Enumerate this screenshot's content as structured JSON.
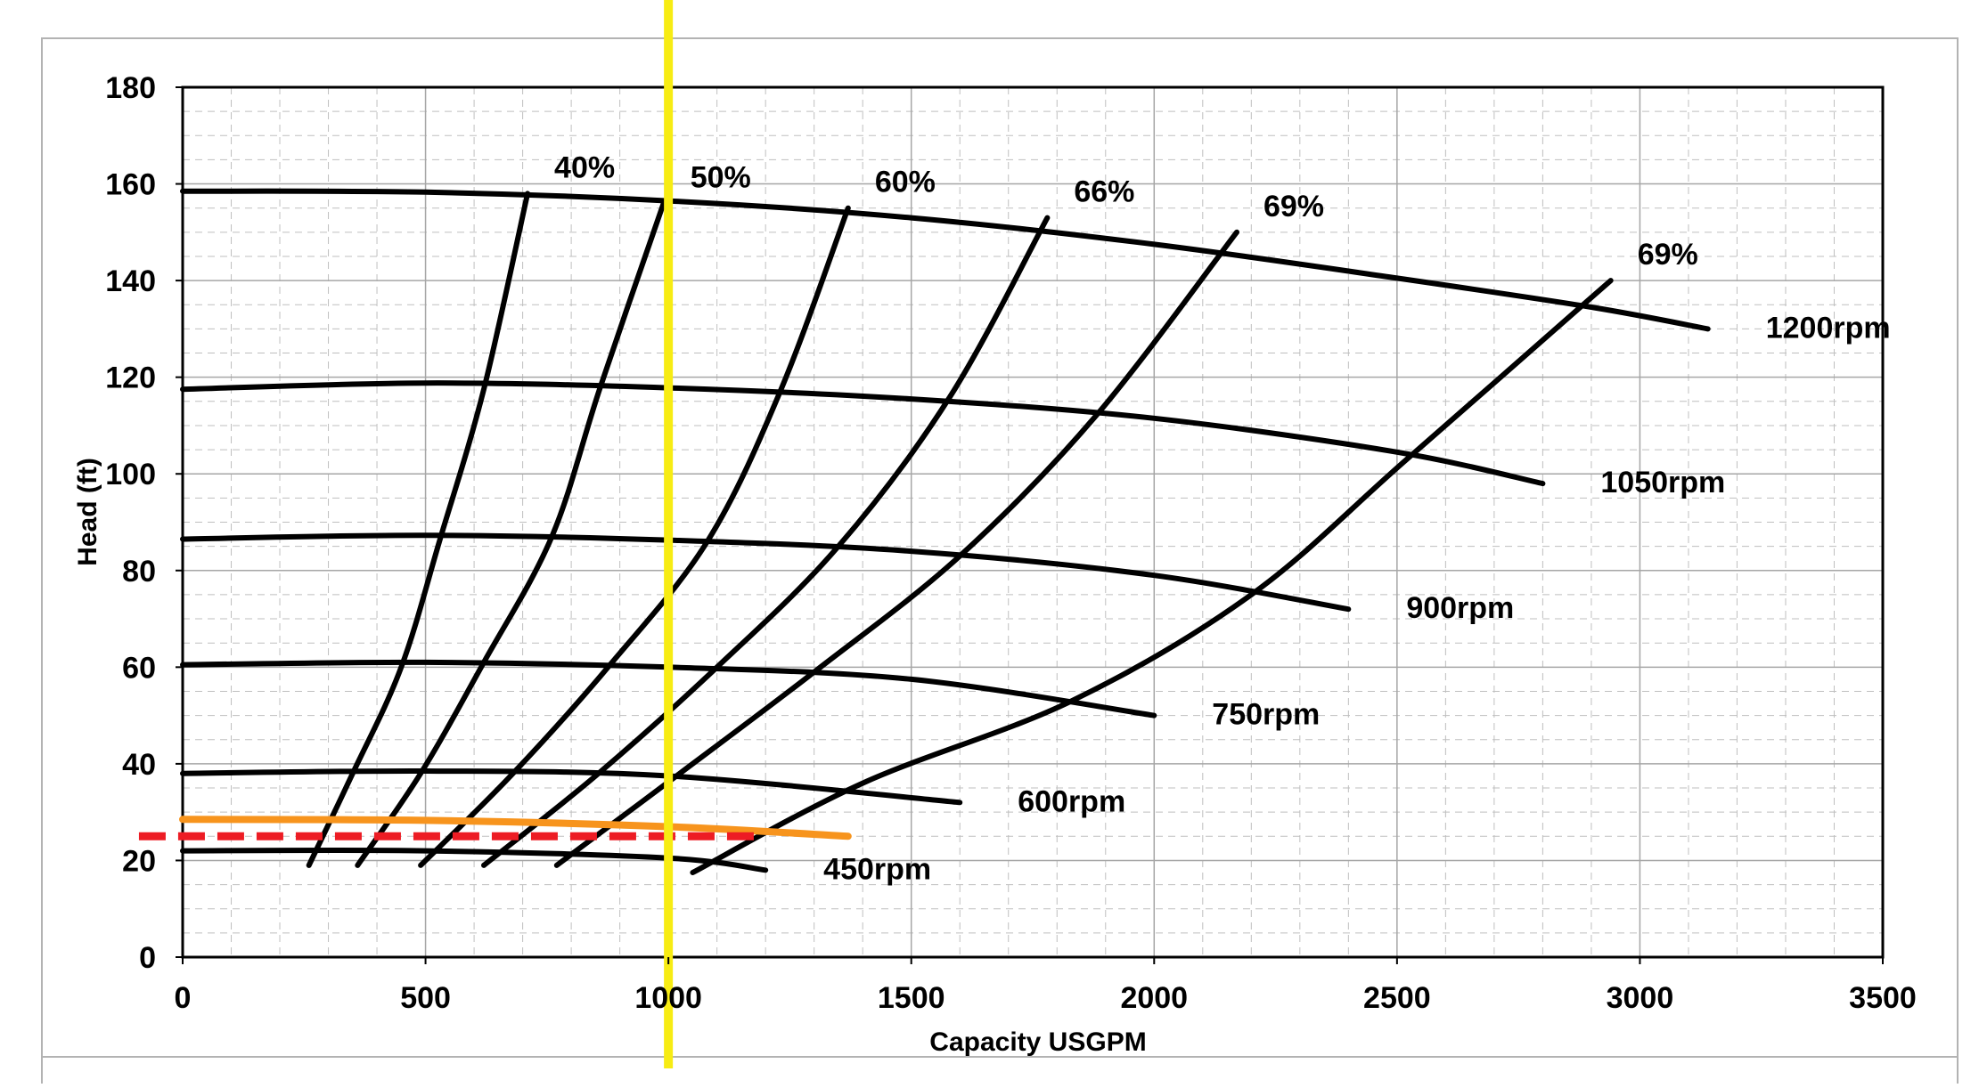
{
  "chart_data": {
    "type": "line",
    "title": "",
    "xlabel": "Capacity USGPM",
    "ylabel": "Head (ft)",
    "xlim": [
      0,
      3500
    ],
    "ylim": [
      0,
      180
    ],
    "x_ticks": [
      0,
      500,
      1000,
      1500,
      2000,
      2500,
      3000,
      3500
    ],
    "x_tick_labels": [
      "0",
      "500",
      "1000",
      "1500",
      "2000",
      "2500",
      "3000",
      "3500"
    ],
    "y_ticks": [
      0,
      20,
      40,
      60,
      80,
      100,
      120,
      140,
      160,
      180
    ],
    "y_tick_labels": [
      "0",
      "20",
      "40",
      "60",
      "80",
      "100",
      "120",
      "140",
      "160",
      "180"
    ],
    "grid": true,
    "minor_grid": "dashed",
    "legend": "none",
    "speed_curves": [
      {
        "name": "1200rpm",
        "color": "#000000",
        "points": [
          [
            0,
            158.5
          ],
          [
            500,
            158.3
          ],
          [
            1000,
            156.5
          ],
          [
            1500,
            153
          ],
          [
            2000,
            147.5
          ],
          [
            2500,
            140.5
          ],
          [
            2900,
            134.5
          ],
          [
            3140,
            130
          ]
        ]
      },
      {
        "name": "1050rpm",
        "color": "#000000",
        "points": [
          [
            0,
            117.5
          ],
          [
            500,
            118.8
          ],
          [
            1000,
            117.8
          ],
          [
            1500,
            115.5
          ],
          [
            2000,
            111.5
          ],
          [
            2500,
            104.5
          ],
          [
            2800,
            98
          ]
        ]
      },
      {
        "name": "900rpm",
        "color": "#000000",
        "points": [
          [
            0,
            86.5
          ],
          [
            500,
            87.3
          ],
          [
            1000,
            86.3
          ],
          [
            1500,
            84
          ],
          [
            2000,
            79
          ],
          [
            2400,
            72
          ]
        ]
      },
      {
        "name": "750rpm",
        "color": "#000000",
        "points": [
          [
            0,
            60.5
          ],
          [
            500,
            61
          ],
          [
            1000,
            60
          ],
          [
            1500,
            57.5
          ],
          [
            2000,
            50
          ]
        ]
      },
      {
        "name": "600rpm",
        "color": "#000000",
        "points": [
          [
            0,
            38
          ],
          [
            500,
            38.5
          ],
          [
            1000,
            37.5
          ],
          [
            1600,
            32
          ]
        ]
      },
      {
        "name": "450rpm",
        "color": "#000000",
        "points": [
          [
            0,
            22
          ],
          [
            500,
            22
          ],
          [
            1000,
            20.5
          ],
          [
            1200,
            18
          ]
        ]
      }
    ],
    "efficiency_curves": [
      {
        "name": "40%",
        "color": "#000000",
        "points": [
          [
            260,
            19
          ],
          [
            350,
            38
          ],
          [
            450,
            60
          ],
          [
            530,
            86.5
          ],
          [
            620,
            117.5
          ],
          [
            710,
            158
          ]
        ]
      },
      {
        "name": "50%",
        "color": "#000000",
        "points": [
          [
            360,
            19
          ],
          [
            490,
            38
          ],
          [
            620,
            61
          ],
          [
            760,
            87
          ],
          [
            860,
            118
          ],
          [
            990,
            156
          ]
        ]
      },
      {
        "name": "60%",
        "color": "#000000",
        "points": [
          [
            490,
            19
          ],
          [
            680,
            38
          ],
          [
            880,
            60.5
          ],
          [
            1080,
            86
          ],
          [
            1230,
            117
          ],
          [
            1370,
            155
          ]
        ]
      },
      {
        "name": "66%",
        "color": "#000000",
        "points": [
          [
            620,
            19
          ],
          [
            850,
            37.5
          ],
          [
            1100,
            60
          ],
          [
            1350,
            85
          ],
          [
            1580,
            116
          ],
          [
            1780,
            153
          ]
        ]
      },
      {
        "name": "69%",
        "color": "#000000",
        "points": [
          [
            770,
            19
          ],
          [
            1010,
            37
          ],
          [
            1300,
            59
          ],
          [
            1600,
            83
          ],
          [
            1880,
            112
          ],
          [
            2170,
            150
          ]
        ]
      },
      {
        "name": "69%",
        "color": "#000000",
        "points": [
          [
            1050,
            17.5
          ],
          [
            1400,
            36
          ],
          [
            1830,
            53
          ],
          [
            2200,
            75
          ],
          [
            2520,
            103
          ],
          [
            2940,
            140
          ]
        ]
      }
    ],
    "annotation_lines": [
      {
        "type": "vertical",
        "x": 1000,
        "color": "#f7ec13"
      },
      {
        "type": "system_curve",
        "color": "#f7941d",
        "points": [
          [
            0,
            28.5
          ],
          [
            500,
            28.3
          ],
          [
            1000,
            27
          ],
          [
            1370,
            25
          ]
        ]
      },
      {
        "type": "dashed_horizontal",
        "color": "#ed1c24",
        "y": 25,
        "x_from": -90,
        "x_to": 1200
      }
    ]
  }
}
